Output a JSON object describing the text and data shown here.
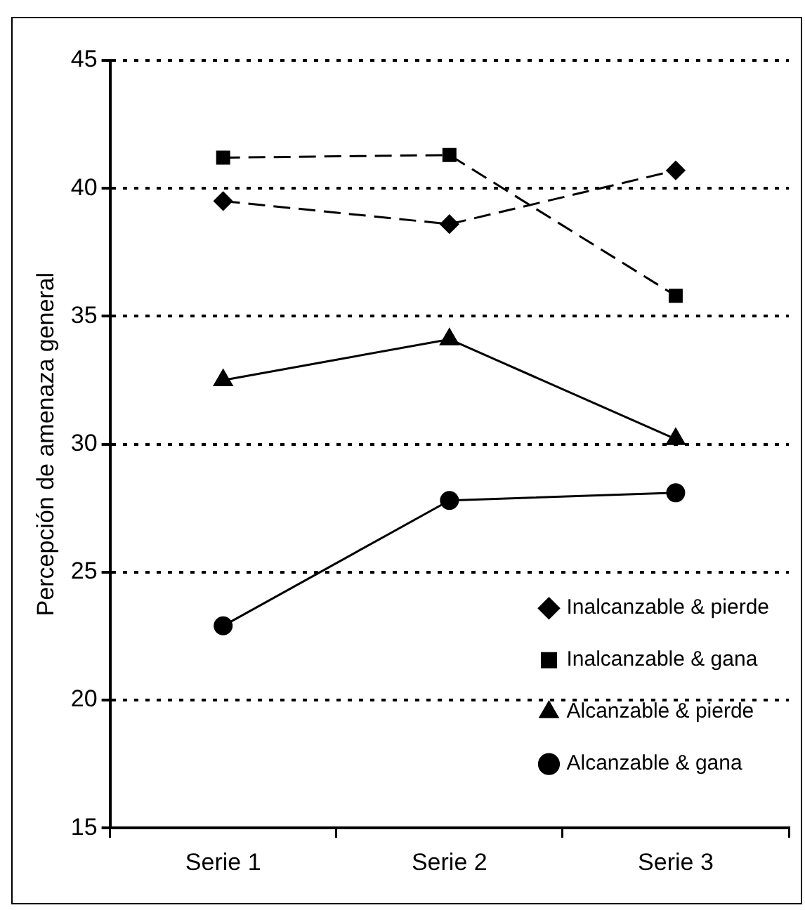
{
  "chart_data": {
    "type": "line",
    "ylabel": "Percepción de amenaza general",
    "categories": [
      "Serie 1",
      "Serie 2",
      "Serie 3"
    ],
    "series": [
      {
        "name": "Inalcanzable & pierde",
        "color": "#000000",
        "values": [
          39.5,
          38.6,
          40.7
        ],
        "marker": "diamond",
        "line_style": "dashed"
      },
      {
        "name": "Inalcanzable & gana",
        "color": "#000000",
        "values": [
          41.2,
          41.3,
          35.8
        ],
        "marker": "square",
        "line_style": "dashed"
      },
      {
        "name": "Alcanzable & pierde",
        "color": "#000000",
        "values": [
          32.5,
          34.1,
          30.2
        ],
        "marker": "triangle",
        "line_style": "solid"
      },
      {
        "name": "Alcanzable & gana",
        "color": "#000000",
        "values": [
          22.9,
          27.8,
          28.1
        ],
        "marker": "circle",
        "line_style": "solid"
      }
    ],
    "ylim": [
      15,
      45
    ],
    "yticks": [
      15,
      20,
      25,
      30,
      35,
      40,
      45
    ],
    "grid": "y",
    "legend": "bottom right"
  }
}
